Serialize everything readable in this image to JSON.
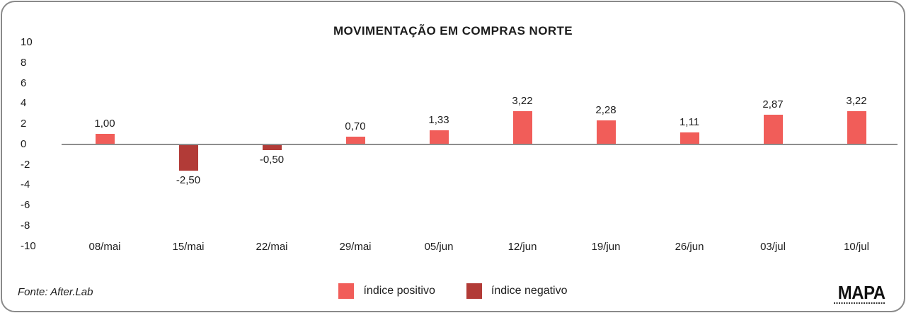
{
  "chart_data": {
    "type": "bar",
    "title": "MOVIMENTAÇÃO EM COMPRAS NORTE",
    "categories": [
      "08/mai",
      "15/mai",
      "22/mai",
      "29/mai",
      "05/jun",
      "12/jun",
      "19/jun",
      "26/jun",
      "03/jul",
      "10/jul"
    ],
    "values": [
      1.0,
      -2.5,
      -0.5,
      0.7,
      1.33,
      3.22,
      2.28,
      1.11,
      2.87,
      3.22
    ],
    "value_labels": [
      "1,00",
      "-2,50",
      "-0,50",
      "0,70",
      "1,33",
      "3,22",
      "2,28",
      "1,11",
      "2,87",
      "3,22"
    ],
    "y_ticks": [
      "10",
      "8",
      "6",
      "4",
      "2",
      "0",
      "-2",
      "-4",
      "-6",
      "-8",
      "-10"
    ],
    "ylim": [
      -10,
      10
    ],
    "xlabel": "",
    "ylabel": "",
    "grid": false,
    "legend_position": "bottom",
    "colors": {
      "positive": "#f15d59",
      "negative": "#b23b37",
      "axis": "#8e8e8e"
    },
    "legend": [
      {
        "label": "índice positivo",
        "color": "#f15d59"
      },
      {
        "label": "índice negativo",
        "color": "#b23b37"
      }
    ]
  },
  "footer": {
    "source": "Fonte: After.Lab",
    "logo": "MAPA"
  }
}
